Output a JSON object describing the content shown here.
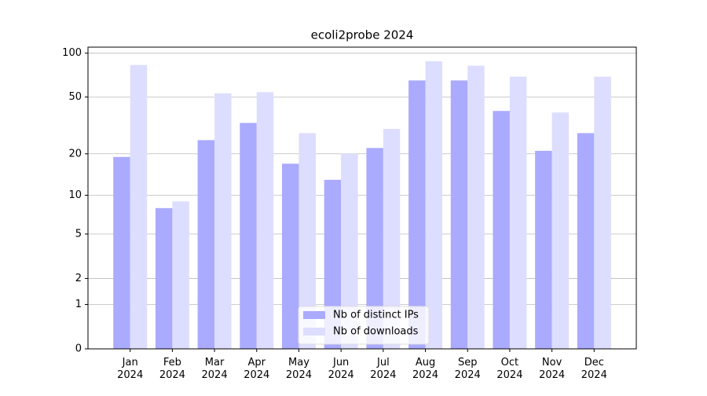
{
  "chart_data": {
    "type": "bar",
    "title": "ecoli2probe 2024",
    "categories": [
      "Jan 2024",
      "Feb 2024",
      "Mar 2024",
      "Apr 2024",
      "May 2024",
      "Jun 2024",
      "Jul 2024",
      "Aug 2024",
      "Sep 2024",
      "Oct 2024",
      "Nov 2024",
      "Dec 2024"
    ],
    "series": [
      {
        "name": "Nb of distinct IPs",
        "color": "#aaaaff",
        "values": [
          19,
          8,
          25,
          33,
          17,
          13,
          22,
          65,
          65,
          40,
          21,
          28
        ]
      },
      {
        "name": "Nb of downloads",
        "color": "#ddddff",
        "values": [
          83,
          9,
          53,
          54,
          28,
          20,
          30,
          88,
          82,
          69,
          39,
          69
        ]
      }
    ],
    "yscale": "log1p",
    "ylim": [
      0,
      110
    ],
    "yticks": [
      0,
      1,
      2,
      5,
      10,
      20,
      50,
      100
    ],
    "grid": true,
    "legend": "lower center"
  }
}
